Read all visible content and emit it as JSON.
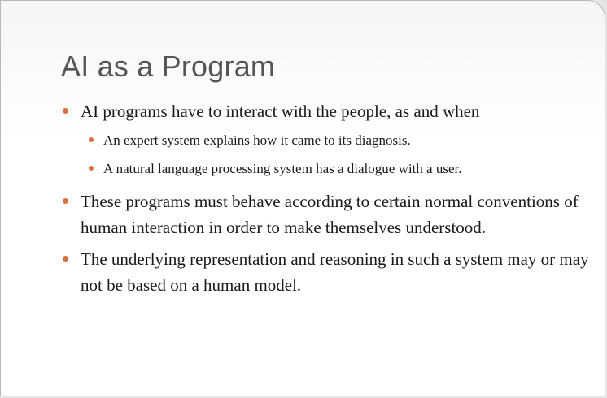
{
  "slide": {
    "title": "AI as a Program",
    "bullets": [
      {
        "text": "AI programs have to interact with the people, as and when",
        "sub": [
          "An expert system explains how it came to its diagnosis.",
          "A natural language processing system has a dialogue with a user."
        ]
      },
      {
        "text": "These programs must behave according to certain normal conventions of human interaction in order to make themselves understood.",
        "sub": []
      },
      {
        "text": "The underlying representation and reasoning in such a system may or may not be based on a human model.",
        "sub": []
      }
    ]
  },
  "colors": {
    "bullet": "#d8703c",
    "title": "#555555",
    "text": "#1a1a1a"
  },
  "icons": {
    "bullet": "bullet-dot-icon"
  }
}
